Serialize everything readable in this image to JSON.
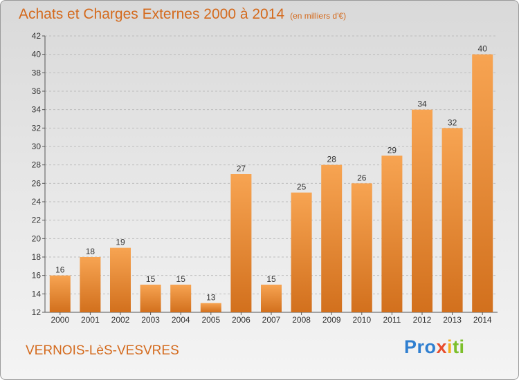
{
  "header": {
    "title": "Achats et Charges Externes 2000 à 2014",
    "unit": "(en milliers d'€)"
  },
  "footer": {
    "commune": "VERNOIS-LèS-VESVRES",
    "brand": {
      "p1": "Pro",
      "p2": "x",
      "p3": "i",
      "p4": "ti"
    }
  },
  "colors": {
    "title": "#d46a1d",
    "bar_light": "#f7a452",
    "bar_dark": "#d2701d",
    "grid": "#bdbdbd"
  },
  "chart_data": {
    "type": "bar",
    "title": "Achats et Charges Externes 2000 à 2014",
    "subtitle": "(en milliers d'€)",
    "categories": [
      "2000",
      "2001",
      "2002",
      "2003",
      "2004",
      "2005",
      "2006",
      "2007",
      "2008",
      "2009",
      "2010",
      "2011",
      "2012",
      "2013",
      "2014"
    ],
    "values": [
      16,
      18,
      19,
      15,
      15,
      13,
      27,
      15,
      25,
      28,
      26,
      29,
      34,
      32,
      40
    ],
    "data_labels": [
      "16",
      "18",
      "19",
      "15",
      "15",
      "13",
      "27",
      "15",
      "25",
      "28",
      "26",
      "29",
      "34",
      "32",
      "40"
    ],
    "ylim": [
      12,
      42
    ],
    "yticks": [
      12,
      14,
      16,
      18,
      20,
      22,
      24,
      26,
      28,
      30,
      32,
      34,
      36,
      38,
      40,
      42
    ],
    "ytick_labels": [
      "12",
      "14",
      "16",
      "18",
      "20",
      "22",
      "24",
      "26",
      "28",
      "30",
      "32",
      "34",
      "36",
      "38",
      "40",
      "42"
    ],
    "grid": "horizontal-dashed",
    "xlabel": "",
    "ylabel": ""
  }
}
